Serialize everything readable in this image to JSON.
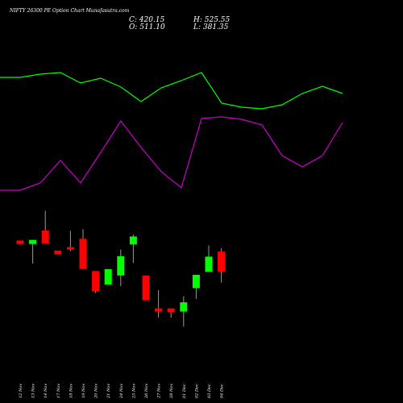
{
  "chart_data": {
    "type": "candlestick",
    "title": "NIFTY 26300 PE Option Chart Munafasutra.com",
    "ohlc_summary": {
      "C": "420.15",
      "O": "511.10",
      "H": "525.55",
      "L": "381.35"
    },
    "categories": [
      "12 Nov",
      "13 Nov",
      "14 Nov",
      "17 Nov",
      "18 Nov",
      "19 Nov",
      "20 Nov",
      "21 Nov",
      "24 Nov",
      "25 Nov",
      "26 Nov",
      "27 Nov",
      "28 Nov",
      "01 Dec",
      "02 Dec",
      "03 Dec",
      "04 Dec"
    ],
    "candles": [
      {
        "open": 52.0,
        "high": 52.0,
        "low": 46.5,
        "close": 46.5
      },
      {
        "open": 46.5,
        "high": 53.0,
        "low": 15.3,
        "close": 53.0
      },
      {
        "open": 68.0,
        "high": 99.5,
        "low": 47.0,
        "close": 47.0
      },
      {
        "open": 36.0,
        "high": 36.0,
        "low": 30.0,
        "close": 30.0
      },
      {
        "open": 41.5,
        "high": 67.4,
        "low": 35.0,
        "close": 40.0
      },
      {
        "open": 54.7,
        "high": 70.0,
        "low": 6.8,
        "close": 6.8
      },
      {
        "open": 3.4,
        "high": 3.4,
        "low": -31.5,
        "close": -28.7
      },
      {
        "open": -18.0,
        "high": 6.5,
        "low": -18.0,
        "close": 6.5
      },
      {
        "open": -3.6,
        "high": 37.5,
        "low": -20.5,
        "close": 27.1
      },
      {
        "open": 46.0,
        "high": 61.5,
        "low": 16.4,
        "close": 58.5
      },
      {
        "open": -3.7,
        "high": -3.7,
        "low": -43.0,
        "close": -43.0
      },
      {
        "open": -56.0,
        "high": -27.0,
        "low": -70.5,
        "close": -61.0
      },
      {
        "open": -56.0,
        "high": -56.0,
        "low": -70.5,
        "close": -62.0
      },
      {
        "open": -61.0,
        "high": -36.5,
        "low": -85.0,
        "close": -46.3
      },
      {
        "open": -23.6,
        "high": -2.5,
        "low": -41.0,
        "close": -2.5
      },
      {
        "open": 2.3,
        "high": 44.0,
        "low": 2.3,
        "close": 26.4
      },
      {
        "open": 34.4,
        "high": 40.0,
        "low": -14.9,
        "close": 2.7
      }
    ],
    "colors": {
      "up": "#00ff00",
      "down": "#ff0000",
      "green_line": "#00ff00",
      "magenta_line": "#cc00cc",
      "background": "#000000",
      "text": "#ffffff"
    }
  }
}
